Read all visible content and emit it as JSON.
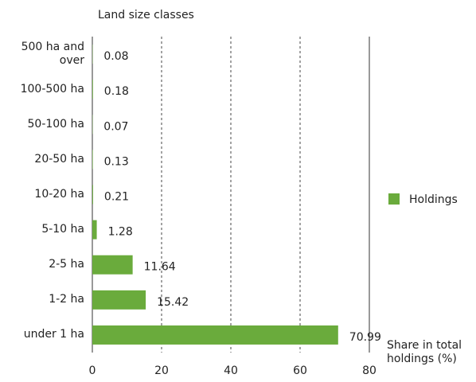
{
  "chart_data": {
    "type": "bar",
    "orientation": "horizontal",
    "y_label": "Land size classes",
    "x_label": "Share in total holdings (%)",
    "categories": [
      "500 ha and over",
      "100-500 ha",
      "50-100 ha",
      "20-50 ha",
      "10-20 ha",
      "5-10 ha",
      "2-5 ha",
      "1-2 ha",
      "under 1 ha"
    ],
    "series": [
      {
        "name": "Holdings",
        "color": "#6aab3c",
        "values": [
          0.08,
          0.18,
          0.07,
          0.13,
          0.21,
          1.28,
          11.64,
          15.42,
          70.99
        ]
      }
    ],
    "xlim": [
      0,
      80
    ],
    "xticks": [
      0,
      20,
      40,
      60,
      80
    ],
    "grid": true,
    "legend": "right"
  }
}
